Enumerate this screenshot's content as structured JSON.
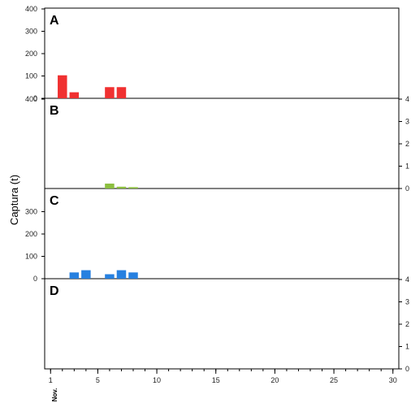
{
  "chart_data": {
    "type": "bar",
    "ylabel": "Captura (t)",
    "x_note": "Nov.",
    "xlim": [
      0.5,
      30.5
    ],
    "x_ticks": [
      1,
      5,
      10,
      15,
      20,
      25,
      30
    ],
    "panels": [
      {
        "letter": "A",
        "color": "#f03030",
        "ylim": [
          0,
          400
        ],
        "left_ticks": [
          0,
          100,
          200,
          300,
          400
        ],
        "right_ticks": [],
        "bars": [
          {
            "x": 2,
            "y": 103
          },
          {
            "x": 3,
            "y": 27
          },
          {
            "x": 6,
            "y": 50
          },
          {
            "x": 7,
            "y": 50
          }
        ]
      },
      {
        "letter": "B",
        "color": "#8cbf3f",
        "ylim": [
          0,
          400
        ],
        "left_ticks": [
          400
        ],
        "right_ticks": [
          0,
          1,
          2,
          3,
          4
        ],
        "bars": [
          {
            "x": 6,
            "y": 22
          },
          {
            "x": 7,
            "y": 8
          },
          {
            "x": 8,
            "y": 6
          }
        ]
      },
      {
        "letter": "C",
        "color": "#2680e0",
        "ylim": [
          0,
          400
        ],
        "left_ticks": [
          0,
          100,
          200,
          300
        ],
        "right_ticks": [],
        "bars": [
          {
            "x": 3,
            "y": 28
          },
          {
            "x": 4,
            "y": 38
          },
          {
            "x": 6,
            "y": 20
          },
          {
            "x": 7,
            "y": 38
          },
          {
            "x": 8,
            "y": 28
          }
        ]
      },
      {
        "letter": "D",
        "color": "#2680e0",
        "ylim": [
          0,
          400
        ],
        "left_ticks": [],
        "right_ticks": [
          0,
          1,
          2,
          3,
          4
        ],
        "bars": []
      }
    ]
  }
}
